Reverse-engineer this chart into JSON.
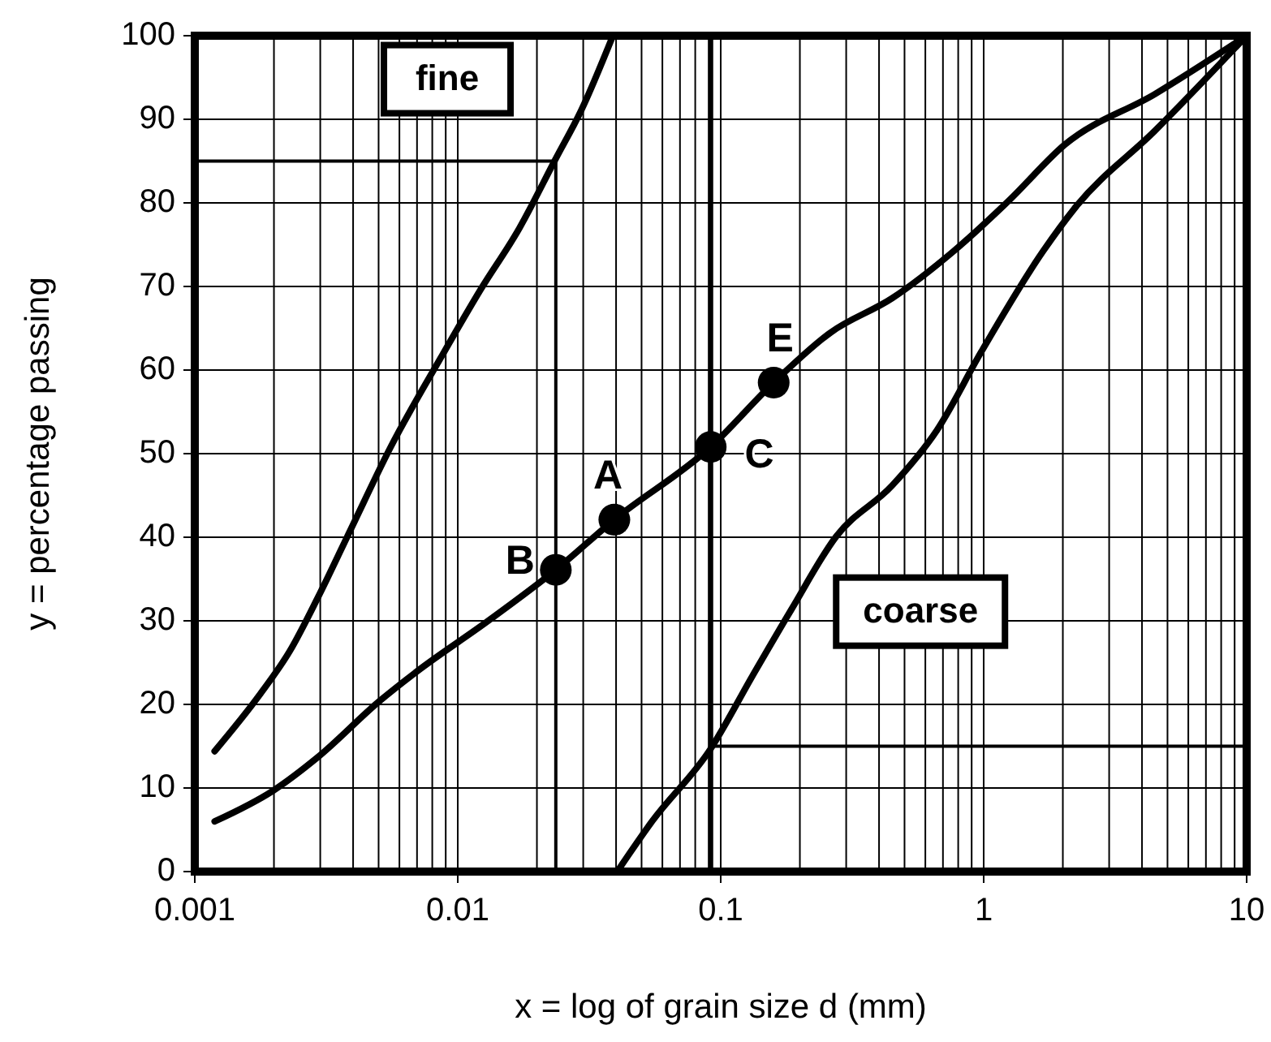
{
  "chart_data": {
    "type": "line",
    "xlabel": "x = log of grain size d (mm)",
    "ylabel": "y = percentage passing",
    "log": "x",
    "grid": true,
    "xlim": [
      0.001,
      10
    ],
    "ylim": [
      0,
      100
    ],
    "xticks": [
      {
        "value": 0.001,
        "label": "0.001"
      },
      {
        "value": 0.01,
        "label": "0.01"
      },
      {
        "value": 0.1,
        "label": "0.1"
      },
      {
        "value": 1,
        "label": "1"
      },
      {
        "value": 10,
        "label": "10"
      }
    ],
    "yticks": [
      0,
      10,
      20,
      30,
      40,
      50,
      60,
      70,
      80,
      90,
      100
    ],
    "series": [
      {
        "color": "#000000",
        "x": [
          0.00119,
          0.00176,
          0.0023,
          0.00294,
          0.00394,
          0.00556,
          0.00863,
          0.0122,
          0.0171,
          0.0236,
          0.0294,
          0.0389
        ],
        "values": [
          14.4,
          21.1,
          26.4,
          32.8,
          41.1,
          50.8,
          61.5,
          69.6,
          76.9,
          85.3,
          91,
          100
        ]
      },
      {
        "color": "#000000",
        "x": [
          0.00119,
          0.00199,
          0.00294,
          0.00504,
          0.0071,
          0.0128,
          0.0236,
          0.0394,
          0.0916,
          0.159,
          0.262,
          0.449,
          0.767,
          1.25,
          2.04,
          4.47,
          10
        ],
        "values": [
          6,
          9.7,
          13.7,
          20.4,
          24.1,
          29.8,
          36.1,
          42.1,
          50.8,
          58.5,
          64.5,
          68.6,
          74.2,
          80.3,
          87,
          93,
          100
        ]
      },
      {
        "color": "#000000",
        "x": [
          0.0404,
          0.0548,
          0.0916,
          0.132,
          0.186,
          0.275,
          0.449,
          0.664,
          0.98,
          1.68,
          2.25,
          4.47,
          10
        ],
        "values": [
          0,
          6,
          14.7,
          23.4,
          31.4,
          40.1,
          46.2,
          52.8,
          62.2,
          74.2,
          79.6,
          88.6,
          100
        ]
      },
      {
        "type": "step",
        "color": "#000000",
        "x": [
          0.001,
          0.0236
        ],
        "values": [
          85,
          0
        ]
      },
      {
        "type": "step",
        "color": "#000000",
        "x": [
          0.094,
          10
        ],
        "values": [
          15,
          15
        ]
      },
      {
        "type": "scatter",
        "color": "#000000",
        "marker": "circle",
        "x": [
          0.0236,
          0.0394,
          0.0916,
          0.159
        ],
        "values": [
          36.1,
          42.1,
          50.8,
          58.5
        ],
        "value_labels": [
          "B",
          "A",
          "C",
          "E"
        ]
      }
    ],
    "ref_lines": [
      {
        "axis": "x",
        "value": 0.092,
        "color": "#000000"
      }
    ],
    "annotations": [
      "fine",
      "coarse"
    ]
  }
}
